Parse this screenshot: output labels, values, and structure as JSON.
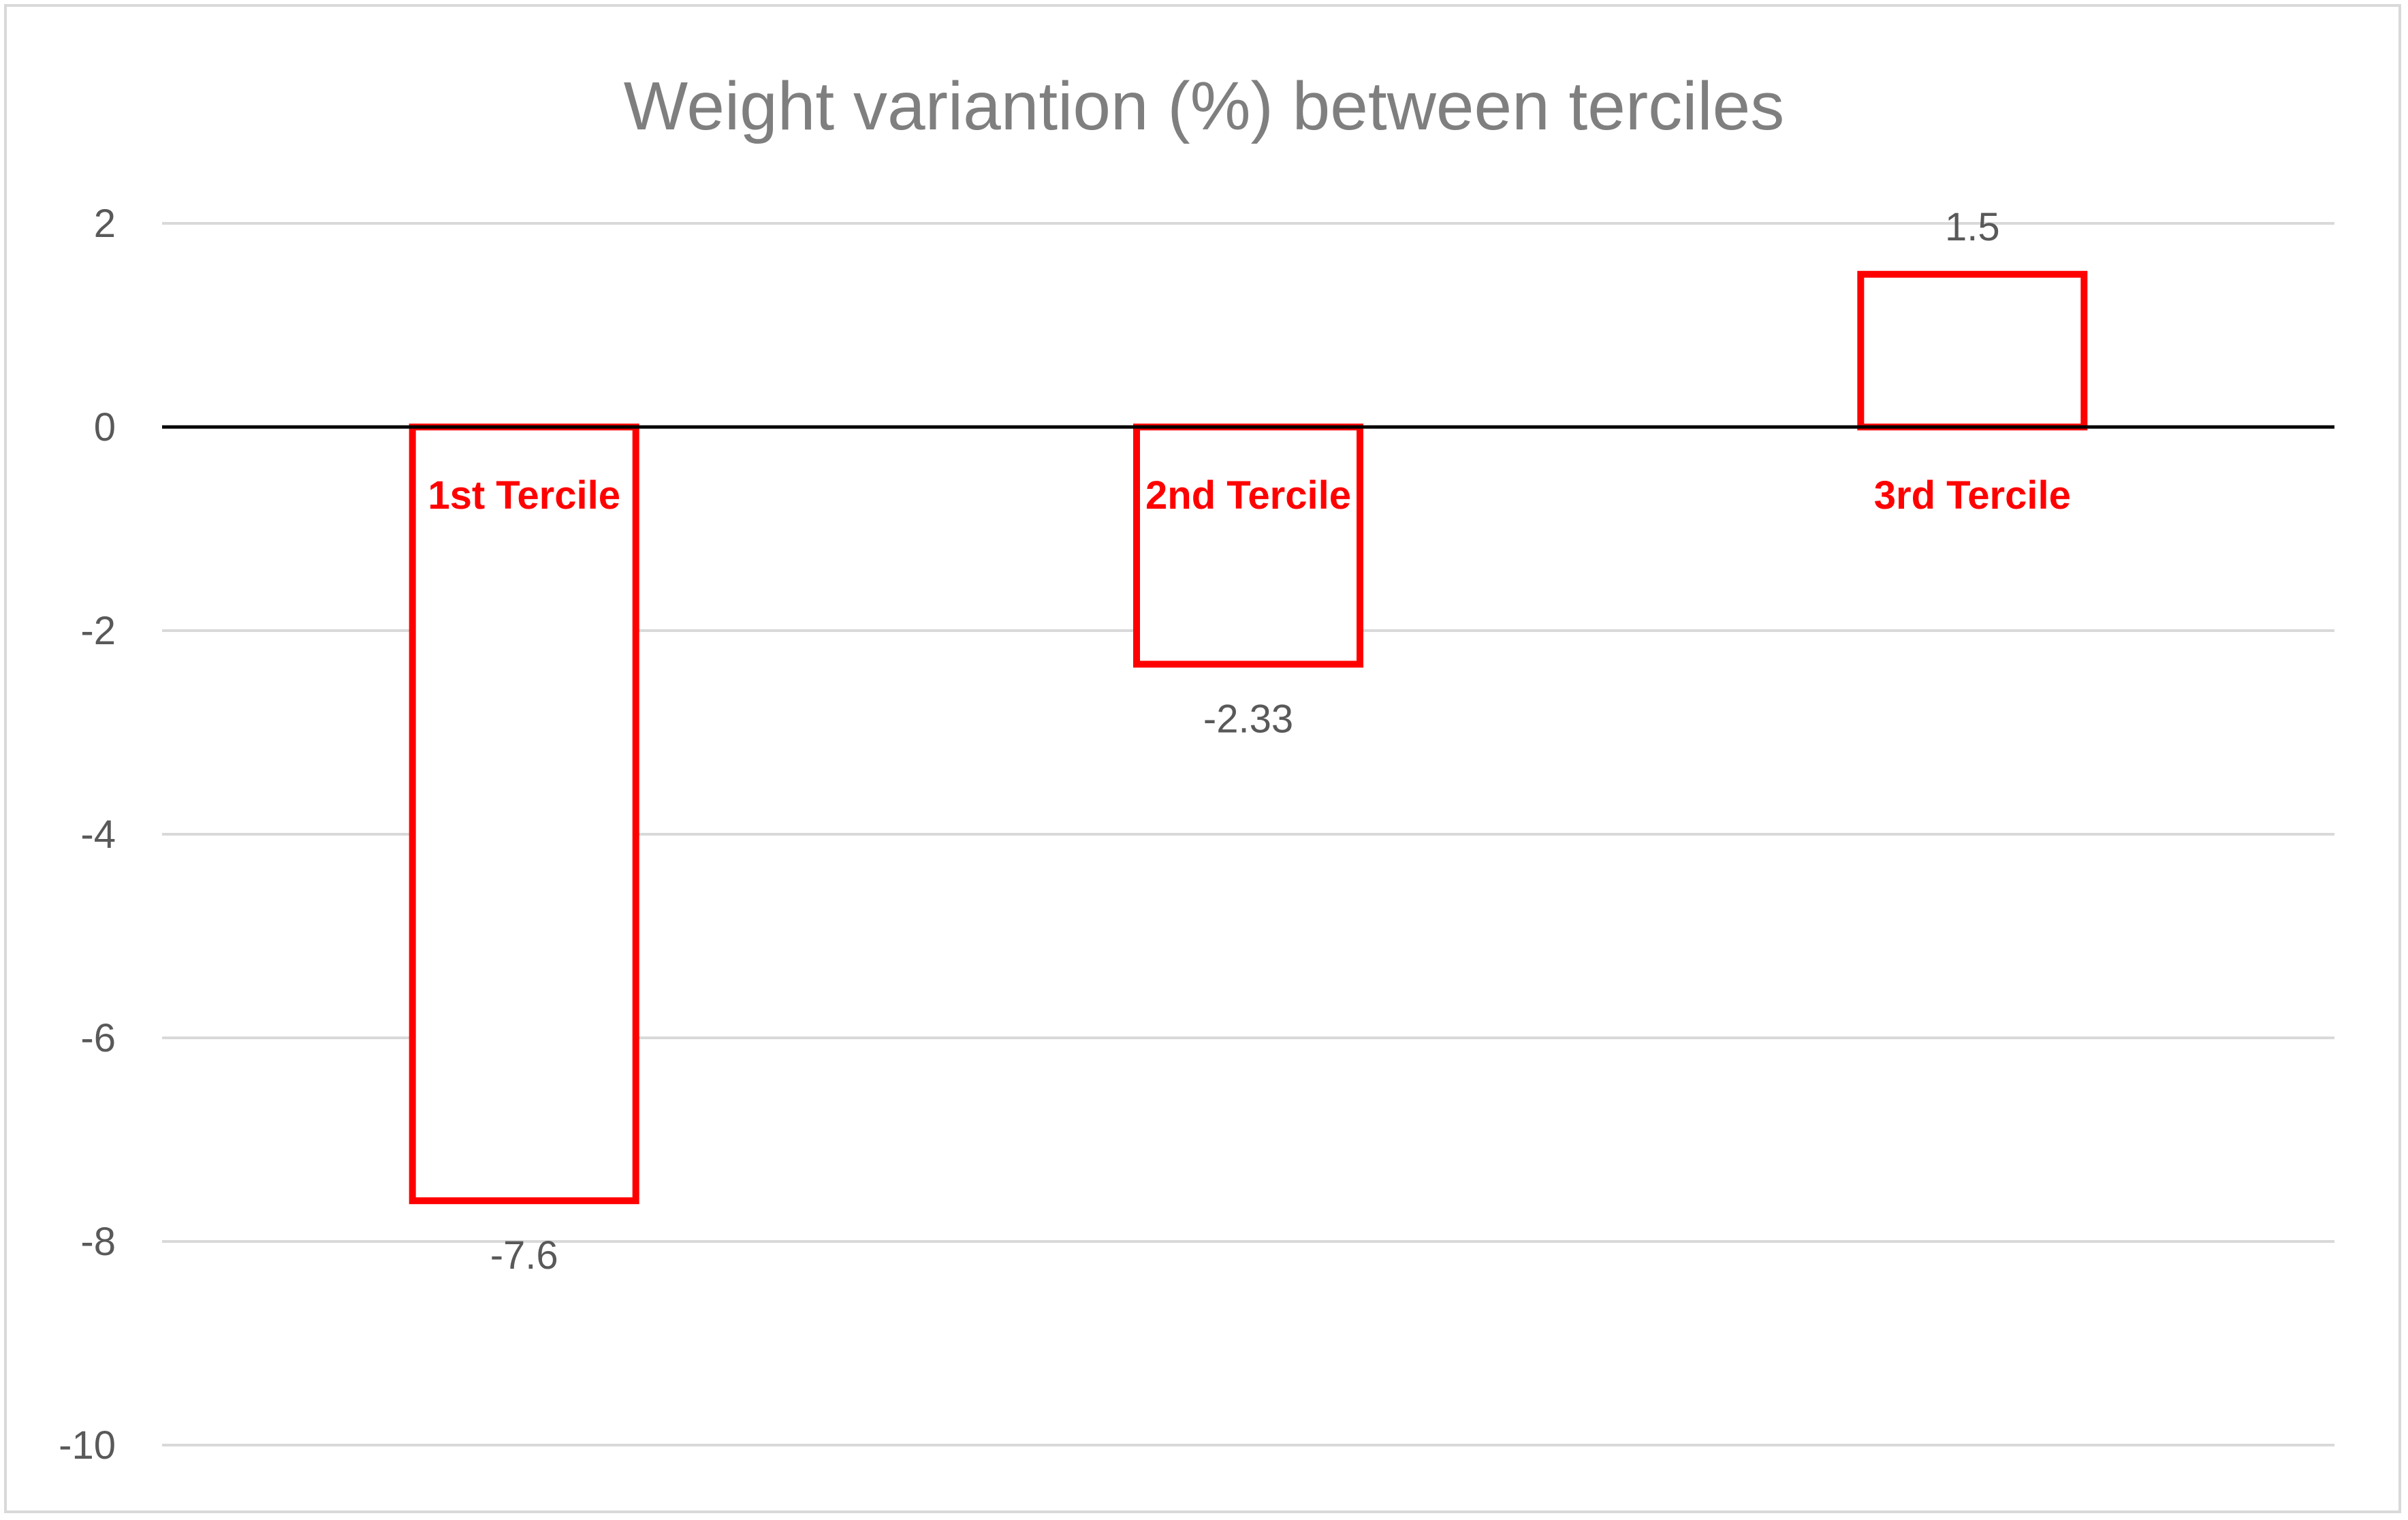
{
  "chart_data": {
    "type": "bar",
    "title": "Weight variantion (%) between terciles",
    "xlabel": "",
    "ylabel": "",
    "categories": [
      "1st Tercile",
      "2nd Tercile",
      "3rd Tercile"
    ],
    "values": [
      -7.6,
      -2.33,
      1.5
    ],
    "value_labels": [
      "-7.6",
      "-2.33",
      "1.5"
    ],
    "ylim": [
      -10,
      2
    ],
    "yticks": [
      2,
      0,
      -2,
      -4,
      -6,
      -8,
      -10
    ],
    "ytick_labels": [
      "2",
      "0",
      "-2",
      "-4",
      "-6",
      "-8",
      "-10"
    ],
    "grid": true,
    "legend": "none",
    "bar_style": "outline",
    "colors": {
      "bar_outline": "#ff0000",
      "bar_fill": "#ffffff",
      "category_label": "#ff0000",
      "gridline": "#d9d9d9",
      "zero_line": "#000000",
      "title": "#7f7f7f",
      "tick": "#595959"
    }
  }
}
